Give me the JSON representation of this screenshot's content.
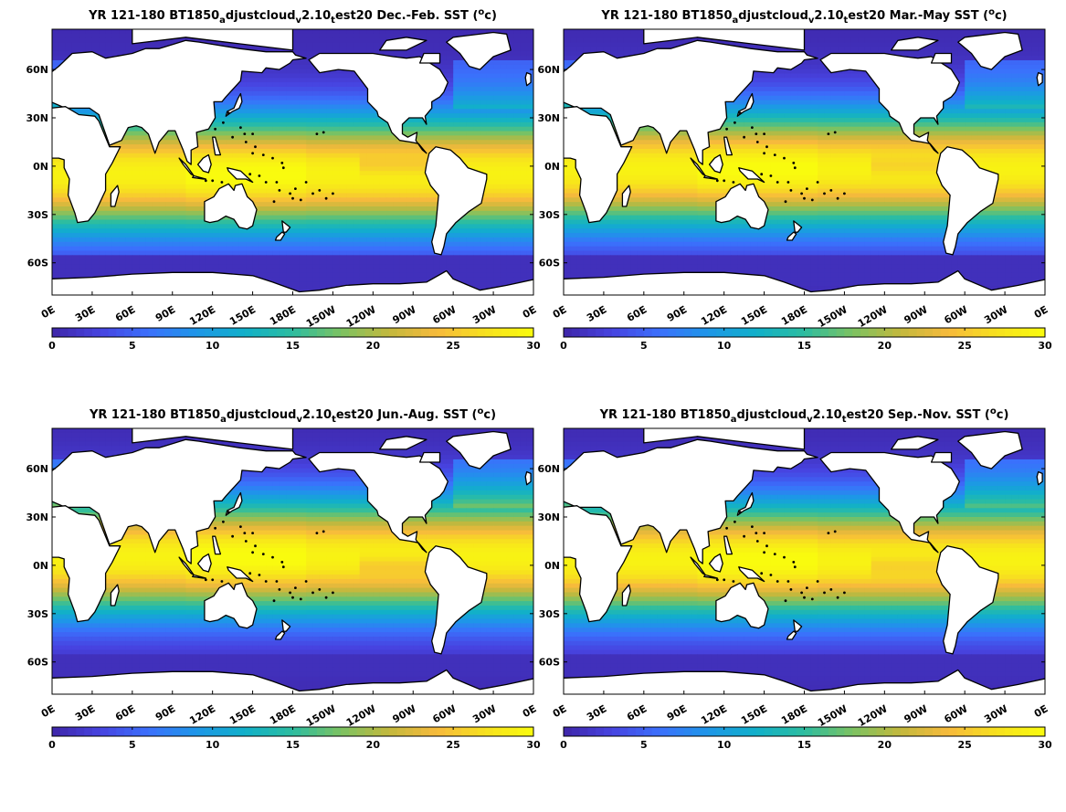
{
  "chart_data": [
    {
      "type": "heatmap",
      "title": {
        "pre": "YR 121-180 BT1850",
        "s1": "a",
        "mid1": "djustcloud",
        "s2": "v",
        "mid2": "2.10",
        "s3": "t",
        "post": "est20 Dec.-Feb. SST (",
        "sup": "o",
        "tail": "c)"
      },
      "season": "Dec.-Feb.",
      "xticks": [
        "0E",
        "30E",
        "60E",
        "90E",
        "120E",
        "150E",
        "180E",
        "150W",
        "120W",
        "90W",
        "60W",
        "30W",
        "0E"
      ],
      "yticks": [
        "60N",
        "30N",
        "0N",
        "30S",
        "60S"
      ],
      "colorbar": {
        "min": 0,
        "max": 30,
        "ticks": [
          "0",
          "5",
          "10",
          "15",
          "20",
          "25",
          "30"
        ]
      },
      "xlim": [
        0,
        360
      ],
      "ylim": [
        -80,
        85
      ]
    },
    {
      "type": "heatmap",
      "title": {
        "pre": "YR 121-180 BT1850",
        "s1": "a",
        "mid1": "djustcloud",
        "s2": "v",
        "mid2": "2.10",
        "s3": "t",
        "post": "est20 Mar.-May SST (",
        "sup": "o",
        "tail": "c)"
      },
      "season": "Mar.-May",
      "xticks": [
        "0E",
        "30E",
        "60E",
        "90E",
        "120E",
        "150E",
        "180E",
        "150W",
        "120W",
        "90W",
        "60W",
        "30W",
        "0E"
      ],
      "yticks": [
        "60N",
        "30N",
        "0N",
        "30S",
        "60S"
      ],
      "colorbar": {
        "min": 0,
        "max": 30,
        "ticks": [
          "0",
          "5",
          "10",
          "15",
          "20",
          "25",
          "30"
        ]
      },
      "xlim": [
        0,
        360
      ],
      "ylim": [
        -80,
        85
      ]
    },
    {
      "type": "heatmap",
      "title": {
        "pre": "YR 121-180 BT1850",
        "s1": "a",
        "mid1": "djustcloud",
        "s2": "v",
        "mid2": "2.10",
        "s3": "t",
        "post": "est20 Jun.-Aug. SST (",
        "sup": "o",
        "tail": "c)"
      },
      "season": "Jun.-Aug.",
      "xticks": [
        "0E",
        "30E",
        "60E",
        "90E",
        "120E",
        "150E",
        "180E",
        "150W",
        "120W",
        "90W",
        "60W",
        "30W",
        "0E"
      ],
      "yticks": [
        "60N",
        "30N",
        "0N",
        "30S",
        "60S"
      ],
      "colorbar": {
        "min": 0,
        "max": 30,
        "ticks": [
          "0",
          "5",
          "10",
          "15",
          "20",
          "25",
          "30"
        ]
      },
      "xlim": [
        0,
        360
      ],
      "ylim": [
        -80,
        85
      ]
    },
    {
      "type": "heatmap",
      "title": {
        "pre": "YR 121-180 BT1850",
        "s1": "a",
        "mid1": "djustcloud",
        "s2": "v",
        "mid2": "2.10",
        "s3": "t",
        "post": "est20 Sep.-Nov. SST (",
        "sup": "o",
        "tail": "c)"
      },
      "season": "Sep.-Nov.",
      "xticks": [
        "0E",
        "30E",
        "60E",
        "90E",
        "120E",
        "150E",
        "180E",
        "150W",
        "120W",
        "90W",
        "60W",
        "30W",
        "0E"
      ],
      "yticks": [
        "60N",
        "30N",
        "0N",
        "30S",
        "60S"
      ],
      "colorbar": {
        "min": 0,
        "max": 30,
        "ticks": [
          "0",
          "5",
          "10",
          "15",
          "20",
          "25",
          "30"
        ]
      },
      "xlim": [
        0,
        360
      ],
      "ylim": [
        -80,
        85
      ]
    }
  ],
  "colormap": [
    "#3e26a8",
    "#4743e0",
    "#3b70fc",
    "#1e96e8",
    "#11b0c9",
    "#2dbda0",
    "#7bc262",
    "#c3b83d",
    "#f7ba3c",
    "#f7e11e",
    "#f9fb0e"
  ],
  "land_color": "#ffffff",
  "coast_color": "#000000"
}
